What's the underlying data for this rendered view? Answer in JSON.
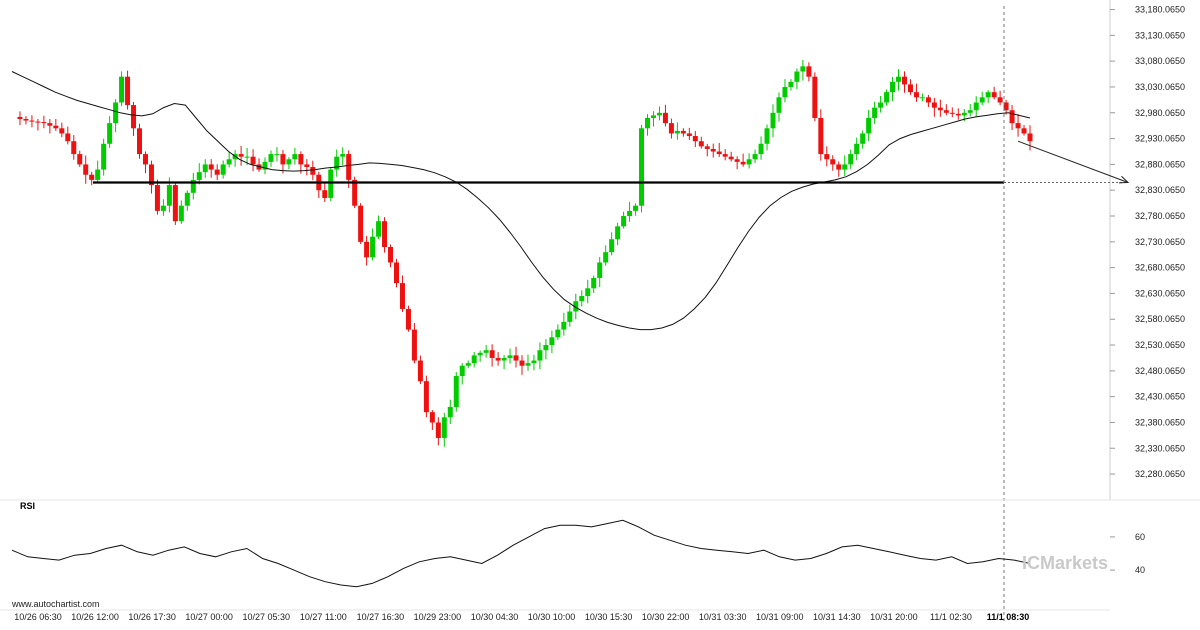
{
  "chart_data": {
    "type": "candlestick",
    "y_ticks": [
      "33,180.0650",
      "33,130.0650",
      "33,080.0650",
      "33,030.0650",
      "32,980.0650",
      "32,930.0650",
      "32,880.0650",
      "32,830.0650",
      "32,780.0650",
      "32,730.0650",
      "32,680.0650",
      "32,630.0650",
      "32,580.0650",
      "32,530.0650",
      "32,480.0650",
      "32,430.0650",
      "32,380.0650",
      "32,330.0650",
      "32,280.0650"
    ],
    "ylim": [
      32255,
      33185
    ],
    "x_ticks": [
      "10/26 06:30",
      "10/26 12:00",
      "10/26 17:30",
      "10/27 00:00",
      "10/27 05:30",
      "10/27 11:00",
      "10/27 16:30",
      "10/29 23:00",
      "10/30 04:30",
      "10/30 10:00",
      "10/30 15:30",
      "10/30 22:00",
      "10/31 03:30",
      "10/31 09:00",
      "10/31 14:30",
      "10/31 20:00",
      "11/1 02:30",
      "11/1 08:30"
    ],
    "highlighted_x_tick": "11/1 08:30",
    "support_level": 32845,
    "projection": {
      "from": 32925,
      "to": 32845
    },
    "up_color": "#00cc00",
    "down_color": "#ee1111",
    "price_series": [
      32972,
      32968,
      32965,
      32963,
      32962,
      32960,
      32955,
      32950,
      32940,
      32925,
      32900,
      32880,
      32860,
      32850,
      32870,
      32920,
      32960,
      33000,
      33050,
      32995,
      32950,
      32900,
      32880,
      32840,
      32790,
      32800,
      32840,
      32770,
      32800,
      32825,
      32850,
      32865,
      32880,
      32870,
      32860,
      32880,
      32890,
      32900,
      32895,
      32895,
      32880,
      32870,
      32885,
      32900,
      32900,
      32880,
      32890,
      32900,
      32880,
      32875,
      32860,
      32830,
      32815,
      32870,
      32895,
      32900,
      32850,
      32800,
      32730,
      32700,
      32740,
      32770,
      32720,
      32690,
      32650,
      32600,
      32560,
      32500,
      32460,
      32400,
      32380,
      32350,
      32390,
      32410,
      32470,
      32490,
      32495,
      32510,
      32515,
      32520,
      32505,
      32500,
      32505,
      32510,
      32500,
      32490,
      32495,
      32500,
      32520,
      32530,
      32545,
      32560,
      32575,
      32595,
      32615,
      32625,
      32640,
      32660,
      32690,
      32710,
      32735,
      32760,
      32780,
      32790,
      32800,
      32950,
      32970,
      32975,
      32980,
      32960,
      32940,
      32945,
      32940,
      32935,
      32925,
      32915,
      32910,
      32905,
      32900,
      32895,
      32890,
      32885,
      32880,
      32890,
      32900,
      32920,
      32950,
      32980,
      33010,
      33030,
      33040,
      33060,
      33070,
      33050,
      32970,
      32900,
      32890,
      32880,
      32870,
      32880,
      32900,
      32920,
      32940,
      32970,
      32990,
      33000,
      33020,
      33040,
      33050,
      33035,
      33020,
      33010,
      33010,
      33000,
      32990,
      32985,
      32980,
      32978,
      32975,
      32980,
      32985,
      33000,
      33010,
      33020,
      33010,
      33000,
      32985,
      32960,
      32950,
      32940,
      32925
    ],
    "ma_series": [
      33060,
      33050,
      33040,
      33030,
      33020,
      33012,
      33004,
      32998,
      32992,
      32986,
      32980,
      32976,
      32974,
      32978,
      32990,
      32998,
      32995,
      32970,
      32945,
      32925,
      32905,
      32890,
      32880,
      32875,
      32870,
      32868,
      32867,
      32868,
      32870,
      32873,
      32875,
      32878,
      32880,
      32883,
      32882,
      32880,
      32878,
      32874,
      32870,
      32864,
      32856,
      32846,
      32832,
      32815,
      32796,
      32774,
      32748,
      32720,
      32690,
      32662,
      32638,
      32618,
      32604,
      32592,
      32582,
      32574,
      32568,
      32563,
      32560,
      32560,
      32563,
      32570,
      32582,
      32600,
      32622,
      32650,
      32684,
      32718,
      32750,
      32778,
      32800,
      32816,
      32828,
      32836,
      32842,
      32846,
      32850,
      32856,
      32866,
      32880,
      32898,
      32918,
      32930,
      32938,
      32944,
      32950,
      32956,
      32962,
      32968,
      32972,
      32975,
      32978,
      32980,
      32975,
      32970
    ],
    "rsi_series": [
      52,
      48,
      47,
      46,
      49,
      50,
      53,
      55,
      51,
      49,
      52,
      54,
      50,
      48,
      51,
      53,
      47,
      44,
      40,
      36,
      33,
      31,
      30,
      32,
      36,
      41,
      45,
      47,
      48,
      46,
      44,
      49,
      55,
      60,
      65,
      67,
      67,
      66,
      68,
      70,
      66,
      61,
      58,
      55,
      53,
      52,
      51,
      50,
      52,
      48,
      46,
      47,
      50,
      54,
      55,
      53,
      51,
      49,
      47,
      46,
      48,
      44,
      45,
      47,
      46,
      44
    ],
    "rsi_ylim": [
      25,
      75
    ],
    "rsi_ticks": [
      "60",
      "40"
    ]
  },
  "labels": {
    "rsi_title": "RSI",
    "source": "www.autochartist.com",
    "watermark": "ICMarkets"
  }
}
